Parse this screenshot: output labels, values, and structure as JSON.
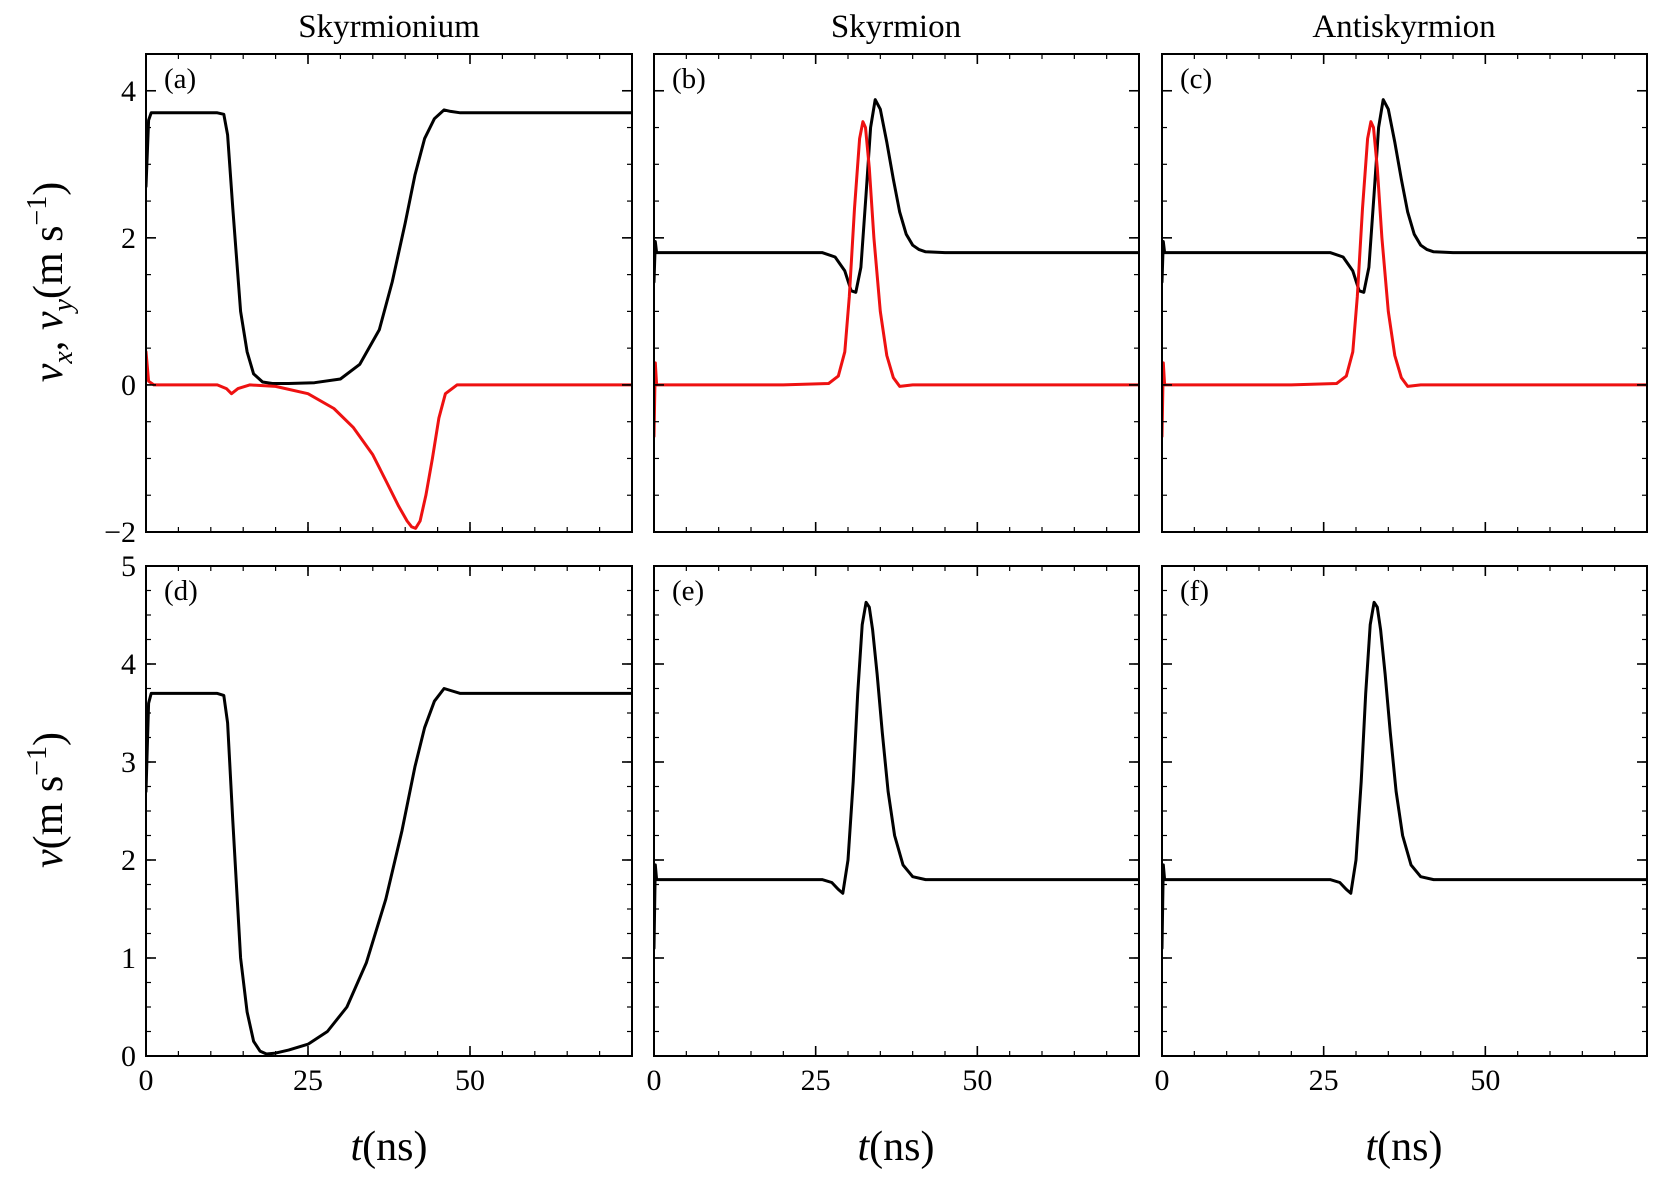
{
  "colors": {
    "black_series": "#000000",
    "red_series": "#ee1111"
  },
  "column_titles": [
    "Skyrmionium",
    "Skyrmion",
    "Antiskyrmion"
  ],
  "y_labels": {
    "top": {
      "v": "v",
      "vx_sub": "x",
      "sep": ", ",
      "vy_sub": "y",
      "unit_open": "(m s",
      "unit_exp": "−1",
      "unit_close": ")"
    },
    "bottom": {
      "v": "v",
      "unit_open": "(m s",
      "unit_exp": "−1",
      "unit_close": ")"
    }
  },
  "x_label": {
    "t": "t",
    "unit": "(ns)"
  },
  "chart_data": [
    {
      "panel": "(a)",
      "type": "line",
      "title": "Skyrmionium",
      "xlim": [
        0,
        75
      ],
      "ylim": [
        -2,
        4.5
      ],
      "xticks": [
        0,
        25,
        50
      ],
      "xtick_labels": [
        "",
        "",
        ""
      ],
      "yticks": [
        -2,
        0,
        2,
        4
      ],
      "ytick_labels": [
        "−2",
        "0",
        "2",
        "4"
      ],
      "series": [
        {
          "color": "black",
          "x": [
            0,
            0.4,
            0.8,
            5,
            11,
            12,
            12.6,
            13.4,
            14.6,
            15.6,
            16.6,
            18,
            19.5,
            22,
            26,
            30,
            33,
            36,
            38,
            40,
            41.5,
            43,
            44.5,
            46,
            47,
            48.5,
            50,
            60,
            75
          ],
          "y": [
            2.7,
            3.6,
            3.7,
            3.7,
            3.7,
            3.68,
            3.4,
            2.4,
            1.0,
            0.45,
            0.15,
            0.04,
            0.02,
            0.02,
            0.03,
            0.08,
            0.28,
            0.75,
            1.4,
            2.2,
            2.85,
            3.35,
            3.62,
            3.74,
            3.72,
            3.7,
            3.7,
            3.7,
            3.7
          ]
        },
        {
          "color": "red",
          "x": [
            0,
            0.4,
            1.2,
            5,
            11,
            12.4,
            13.2,
            14.2,
            16,
            20,
            25,
            29,
            32,
            35,
            37,
            39,
            40.3,
            41,
            41.6,
            42.3,
            43.2,
            44.2,
            45.2,
            46.2,
            48,
            52,
            75
          ],
          "y": [
            0.45,
            0.05,
            0.0,
            0.0,
            0.0,
            -0.05,
            -0.12,
            -0.05,
            0.0,
            -0.02,
            -0.12,
            -0.32,
            -0.58,
            -0.95,
            -1.3,
            -1.65,
            -1.85,
            -1.93,
            -1.95,
            -1.85,
            -1.5,
            -1.0,
            -0.45,
            -0.12,
            0.0,
            0.0,
            0.0
          ]
        }
      ]
    },
    {
      "panel": "(b)",
      "type": "line",
      "title": "Skyrmion",
      "xlim": [
        0,
        75
      ],
      "ylim": [
        -2,
        4.5
      ],
      "xticks": [
        0,
        25,
        50
      ],
      "xtick_labels": [
        "",
        "",
        ""
      ],
      "yticks": [
        -2,
        0,
        2,
        4
      ],
      "ytick_labels": [
        "",
        "",
        "",
        ""
      ],
      "series": [
        {
          "color": "black",
          "x": [
            0,
            0.2,
            0.4,
            1,
            10,
            20,
            26,
            28,
            29.5,
            30.5,
            31.2,
            32,
            32.8,
            33.5,
            34.2,
            35,
            36,
            37,
            38,
            39,
            40,
            41,
            42,
            45,
            55,
            75
          ],
          "y": [
            1.4,
            1.95,
            1.8,
            1.8,
            1.8,
            1.8,
            1.8,
            1.74,
            1.55,
            1.28,
            1.26,
            1.6,
            2.6,
            3.5,
            3.88,
            3.75,
            3.3,
            2.8,
            2.35,
            2.05,
            1.9,
            1.84,
            1.81,
            1.8,
            1.8,
            1.8
          ]
        },
        {
          "color": "red",
          "x": [
            0,
            0.2,
            0.4,
            1,
            10,
            20,
            27,
            28.5,
            29.5,
            30.2,
            31,
            31.8,
            32.3,
            32.7,
            33.3,
            34,
            35,
            36,
            37,
            38,
            40,
            45,
            75
          ],
          "y": [
            -0.7,
            0.3,
            0.0,
            0.0,
            0.0,
            0.0,
            0.02,
            0.12,
            0.45,
            1.2,
            2.4,
            3.35,
            3.58,
            3.5,
            2.95,
            2.0,
            1.0,
            0.4,
            0.1,
            -0.02,
            0.0,
            0.0,
            0.0
          ]
        }
      ]
    },
    {
      "panel": "(c)",
      "type": "line",
      "title": "Antiskyrmion",
      "xlim": [
        0,
        75
      ],
      "ylim": [
        -2,
        4.5
      ],
      "xticks": [
        0,
        25,
        50
      ],
      "xtick_labels": [
        "",
        "",
        ""
      ],
      "yticks": [
        -2,
        0,
        2,
        4
      ],
      "ytick_labels": [
        "",
        "",
        "",
        ""
      ],
      "series": [
        {
          "color": "black",
          "x": [
            0,
            0.2,
            0.4,
            1,
            10,
            20,
            26,
            28,
            29.5,
            30.5,
            31.2,
            32,
            32.8,
            33.5,
            34.2,
            35,
            36,
            37,
            38,
            39,
            40,
            41,
            42,
            45,
            55,
            75
          ],
          "y": [
            1.4,
            1.95,
            1.8,
            1.8,
            1.8,
            1.8,
            1.8,
            1.74,
            1.55,
            1.28,
            1.26,
            1.6,
            2.6,
            3.5,
            3.88,
            3.75,
            3.3,
            2.8,
            2.35,
            2.05,
            1.9,
            1.84,
            1.81,
            1.8,
            1.8,
            1.8
          ]
        },
        {
          "color": "red",
          "x": [
            0,
            0.2,
            0.4,
            1,
            10,
            20,
            27,
            28.5,
            29.5,
            30.2,
            31,
            31.8,
            32.3,
            32.7,
            33.3,
            34,
            35,
            36,
            37,
            38,
            40,
            45,
            75
          ],
          "y": [
            -0.7,
            0.3,
            0.0,
            0.0,
            0.0,
            0.0,
            0.02,
            0.12,
            0.45,
            1.2,
            2.4,
            3.35,
            3.58,
            3.5,
            2.95,
            2.0,
            1.0,
            0.4,
            0.1,
            -0.02,
            0.0,
            0.0,
            0.0
          ]
        }
      ]
    },
    {
      "panel": "(d)",
      "type": "line",
      "title": "",
      "xlim": [
        0,
        75
      ],
      "ylim": [
        0,
        5
      ],
      "xticks": [
        0,
        25,
        50
      ],
      "xtick_labels": [
        "0",
        "25",
        "50"
      ],
      "yticks": [
        0,
        1,
        2,
        3,
        4,
        5
      ],
      "ytick_labels": [
        "0",
        "1",
        "2",
        "3",
        "4",
        "5"
      ],
      "series": [
        {
          "color": "black",
          "x": [
            0,
            0.4,
            0.8,
            5,
            11,
            12,
            12.6,
            13.4,
            14.6,
            15.6,
            16.6,
            17.6,
            18.6,
            20,
            22,
            25,
            28,
            31,
            34,
            37,
            39.5,
            41.5,
            43,
            44.5,
            46,
            47,
            48.5,
            50,
            60,
            75
          ],
          "y": [
            2.7,
            3.6,
            3.7,
            3.7,
            3.7,
            3.68,
            3.4,
            2.4,
            1.0,
            0.45,
            0.15,
            0.05,
            0.02,
            0.03,
            0.06,
            0.12,
            0.25,
            0.5,
            0.95,
            1.6,
            2.3,
            2.95,
            3.35,
            3.62,
            3.75,
            3.73,
            3.7,
            3.7,
            3.7,
            3.7
          ]
        }
      ]
    },
    {
      "panel": "(e)",
      "type": "line",
      "title": "",
      "xlim": [
        0,
        75
      ],
      "ylim": [
        0,
        5
      ],
      "xticks": [
        0,
        25,
        50
      ],
      "xtick_labels": [
        "0",
        "25",
        "50"
      ],
      "yticks": [
        0,
        1,
        2,
        3,
        4,
        5
      ],
      "ytick_labels": [
        "",
        "",
        "",
        "",
        "",
        ""
      ],
      "series": [
        {
          "color": "black",
          "x": [
            0,
            0.2,
            0.4,
            1,
            10,
            20,
            26,
            27.5,
            28.5,
            29.2,
            30,
            30.8,
            31.5,
            32.2,
            32.8,
            33.3,
            33.8,
            34.5,
            35.3,
            36.2,
            37.2,
            38.5,
            40,
            42,
            45,
            55,
            75
          ],
          "y": [
            1.1,
            1.95,
            1.8,
            1.8,
            1.8,
            1.8,
            1.8,
            1.77,
            1.7,
            1.66,
            2.0,
            2.8,
            3.7,
            4.4,
            4.63,
            4.58,
            4.35,
            3.9,
            3.3,
            2.7,
            2.25,
            1.95,
            1.83,
            1.8,
            1.8,
            1.8,
            1.8
          ]
        }
      ]
    },
    {
      "panel": "(f)",
      "type": "line",
      "title": "",
      "xlim": [
        0,
        75
      ],
      "ylim": [
        0,
        5
      ],
      "xticks": [
        0,
        25,
        50
      ],
      "xtick_labels": [
        "0",
        "25",
        "50"
      ],
      "yticks": [
        0,
        1,
        2,
        3,
        4,
        5
      ],
      "ytick_labels": [
        "",
        "",
        "",
        "",
        "",
        ""
      ],
      "series": [
        {
          "color": "black",
          "x": [
            0,
            0.2,
            0.4,
            1,
            10,
            20,
            26,
            27.5,
            28.5,
            29.2,
            30,
            30.8,
            31.5,
            32.2,
            32.8,
            33.3,
            33.8,
            34.5,
            35.3,
            36.2,
            37.2,
            38.5,
            40,
            42,
            45,
            55,
            75
          ],
          "y": [
            1.1,
            1.95,
            1.8,
            1.8,
            1.8,
            1.8,
            1.8,
            1.77,
            1.7,
            1.66,
            2.0,
            2.8,
            3.7,
            4.4,
            4.63,
            4.58,
            4.35,
            3.9,
            3.3,
            2.7,
            2.25,
            1.95,
            1.83,
            1.8,
            1.8,
            1.8,
            1.8
          ]
        }
      ]
    }
  ]
}
